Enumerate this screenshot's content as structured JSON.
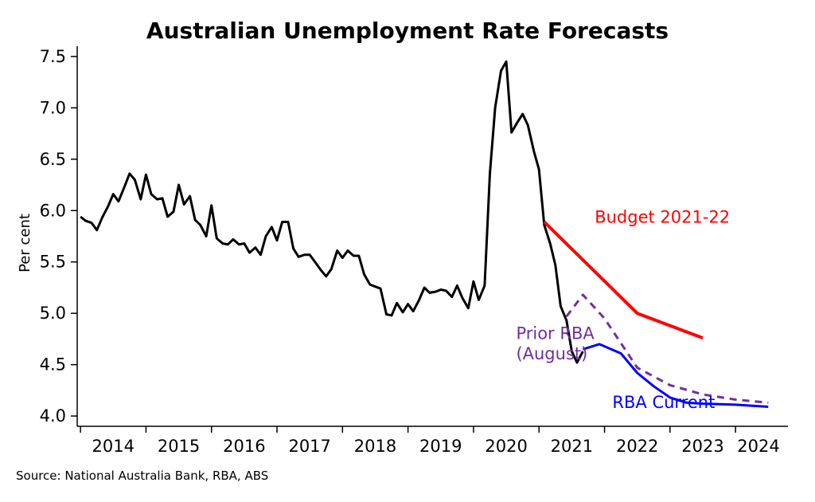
{
  "chart_data": {
    "type": "line",
    "title": "Australian Unemployment Rate Forecasts",
    "ylabel": "Per cent",
    "xlabel": "",
    "ylim": [
      3.9,
      7.6
    ],
    "xlim": [
      2013.45,
      2024.3
    ],
    "yticks": [
      4.0,
      4.5,
      5.0,
      5.5,
      6.0,
      6.5,
      7.0,
      7.5
    ],
    "ytick_labels": [
      "4.0",
      "4.5",
      "5.0",
      "5.5",
      "6.0",
      "6.5",
      "7.0",
      "7.5"
    ],
    "x_tick_positions": [
      2013.5,
      2014.5,
      2015.5,
      2016.5,
      2017.5,
      2018.5,
      2019.5,
      2020.5,
      2021.5,
      2022.5,
      2023.5
    ],
    "x_tick_labels": [
      {
        "label": "2014",
        "x": 2014.0
      },
      {
        "label": "2015",
        "x": 2015.0
      },
      {
        "label": "2016",
        "x": 2016.0
      },
      {
        "label": "2017",
        "x": 2017.0
      },
      {
        "label": "2018",
        "x": 2018.0
      },
      {
        "label": "2019",
        "x": 2019.0
      },
      {
        "label": "2020",
        "x": 2020.0
      },
      {
        "label": "2021",
        "x": 2021.0
      },
      {
        "label": "2022",
        "x": 2022.0
      },
      {
        "label": "2023",
        "x": 2023.0
      },
      {
        "label": "2024",
        "x": 2023.85
      }
    ],
    "grid": false,
    "legend": "none",
    "series": [
      {
        "color": "#000000",
        "style": "solid",
        "width": 3,
        "points": [
          [
            2013.5,
            5.94
          ],
          [
            2013.58,
            5.9
          ],
          [
            2013.67,
            5.88
          ],
          [
            2013.75,
            5.81
          ],
          [
            2013.83,
            5.93
          ],
          [
            2013.92,
            6.04
          ],
          [
            2014.0,
            6.16
          ],
          [
            2014.08,
            6.09
          ],
          [
            2014.17,
            6.23
          ],
          [
            2014.25,
            6.36
          ],
          [
            2014.33,
            6.3
          ],
          [
            2014.42,
            6.11
          ],
          [
            2014.5,
            6.35
          ],
          [
            2014.58,
            6.16
          ],
          [
            2014.67,
            6.11
          ],
          [
            2014.75,
            6.12
          ],
          [
            2014.83,
            5.94
          ],
          [
            2014.92,
            5.99
          ],
          [
            2015.0,
            6.25
          ],
          [
            2015.08,
            6.06
          ],
          [
            2015.17,
            6.14
          ],
          [
            2015.25,
            5.91
          ],
          [
            2015.33,
            5.86
          ],
          [
            2015.42,
            5.75
          ],
          [
            2015.5,
            6.05
          ],
          [
            2015.58,
            5.73
          ],
          [
            2015.67,
            5.68
          ],
          [
            2015.75,
            5.67
          ],
          [
            2015.83,
            5.72
          ],
          [
            2015.92,
            5.67
          ],
          [
            2016.0,
            5.68
          ],
          [
            2016.08,
            5.59
          ],
          [
            2016.17,
            5.64
          ],
          [
            2016.25,
            5.57
          ],
          [
            2016.33,
            5.75
          ],
          [
            2016.42,
            5.84
          ],
          [
            2016.5,
            5.71
          ],
          [
            2016.58,
            5.89
          ],
          [
            2016.67,
            5.89
          ],
          [
            2016.75,
            5.63
          ],
          [
            2016.83,
            5.55
          ],
          [
            2016.92,
            5.57
          ],
          [
            2017.0,
            5.57
          ],
          [
            2017.08,
            5.5
          ],
          [
            2017.17,
            5.42
          ],
          [
            2017.25,
            5.36
          ],
          [
            2017.33,
            5.43
          ],
          [
            2017.42,
            5.61
          ],
          [
            2017.5,
            5.54
          ],
          [
            2017.58,
            5.61
          ],
          [
            2017.67,
            5.56
          ],
          [
            2017.75,
            5.56
          ],
          [
            2017.83,
            5.38
          ],
          [
            2017.92,
            5.28
          ],
          [
            2018.0,
            5.26
          ],
          [
            2018.08,
            5.24
          ],
          [
            2018.17,
            4.99
          ],
          [
            2018.25,
            4.98
          ],
          [
            2018.33,
            5.1
          ],
          [
            2018.42,
            5.01
          ],
          [
            2018.5,
            5.09
          ],
          [
            2018.58,
            5.02
          ],
          [
            2018.67,
            5.13
          ],
          [
            2018.75,
            5.25
          ],
          [
            2018.83,
            5.2
          ],
          [
            2018.92,
            5.21
          ],
          [
            2019.0,
            5.23
          ],
          [
            2019.08,
            5.22
          ],
          [
            2019.17,
            5.16
          ],
          [
            2019.25,
            5.27
          ],
          [
            2019.33,
            5.15
          ],
          [
            2019.42,
            5.05
          ],
          [
            2019.5,
            5.31
          ],
          [
            2019.58,
            5.13
          ],
          [
            2019.67,
            5.27
          ],
          [
            2019.75,
            6.36
          ],
          [
            2019.83,
            7.0
          ],
          [
            2019.92,
            7.36
          ],
          [
            2020.0,
            7.45
          ],
          [
            2020.08,
            6.76
          ],
          [
            2020.17,
            6.86
          ],
          [
            2020.25,
            6.94
          ],
          [
            2020.33,
            6.83
          ],
          [
            2020.42,
            6.58
          ],
          [
            2020.5,
            6.4
          ],
          [
            2020.58,
            5.86
          ],
          [
            2020.67,
            5.68
          ],
          [
            2020.75,
            5.47
          ],
          [
            2020.83,
            5.07
          ],
          [
            2020.92,
            4.93
          ],
          [
            2021.0,
            4.63
          ],
          [
            2021.08,
            4.52
          ],
          [
            2021.17,
            4.63
          ]
        ]
      },
      {
        "color": "#ff0000",
        "style": "solid",
        "width": 4,
        "points": [
          [
            2020.58,
            5.89
          ],
          [
            2022.0,
            5.0
          ],
          [
            2023.0,
            4.76
          ]
        ]
      },
      {
        "color": "#7030a0",
        "style": "dashed",
        "width": 3,
        "points": [
          [
            2020.92,
            4.97
          ],
          [
            2021.17,
            5.18
          ],
          [
            2021.5,
            4.95
          ],
          [
            2022.0,
            4.47
          ],
          [
            2022.5,
            4.3
          ],
          [
            2023.0,
            4.21
          ],
          [
            2023.5,
            4.16
          ],
          [
            2024.0,
            4.13
          ]
        ]
      },
      {
        "color": "#0000ff",
        "style": "solid",
        "width": 3,
        "points": [
          [
            2021.17,
            4.65
          ],
          [
            2021.42,
            4.7
          ],
          [
            2021.75,
            4.61
          ],
          [
            2022.0,
            4.42
          ],
          [
            2022.25,
            4.29
          ],
          [
            2022.5,
            4.18
          ],
          [
            2022.75,
            4.13
          ],
          [
            2023.0,
            4.12
          ],
          [
            2023.5,
            4.11
          ],
          [
            2024.0,
            4.09
          ]
        ]
      }
    ],
    "annotations": [
      {
        "text": "Budget 2021-22",
        "color": "#ff0000",
        "x": 2021.35,
        "y": 5.88
      },
      {
        "text": "Prior RBA",
        "color": "#7030a0",
        "x": 2020.15,
        "y": 4.75
      },
      {
        "text": "(August)",
        "color": "#7030a0",
        "x": 2020.15,
        "y": 4.55
      },
      {
        "text": "RBA Current",
        "color": "#0000ff",
        "x": 2021.62,
        "y": 4.08
      }
    ]
  },
  "footer": {
    "source": "Source: National Australia Bank, RBA, ABS"
  }
}
